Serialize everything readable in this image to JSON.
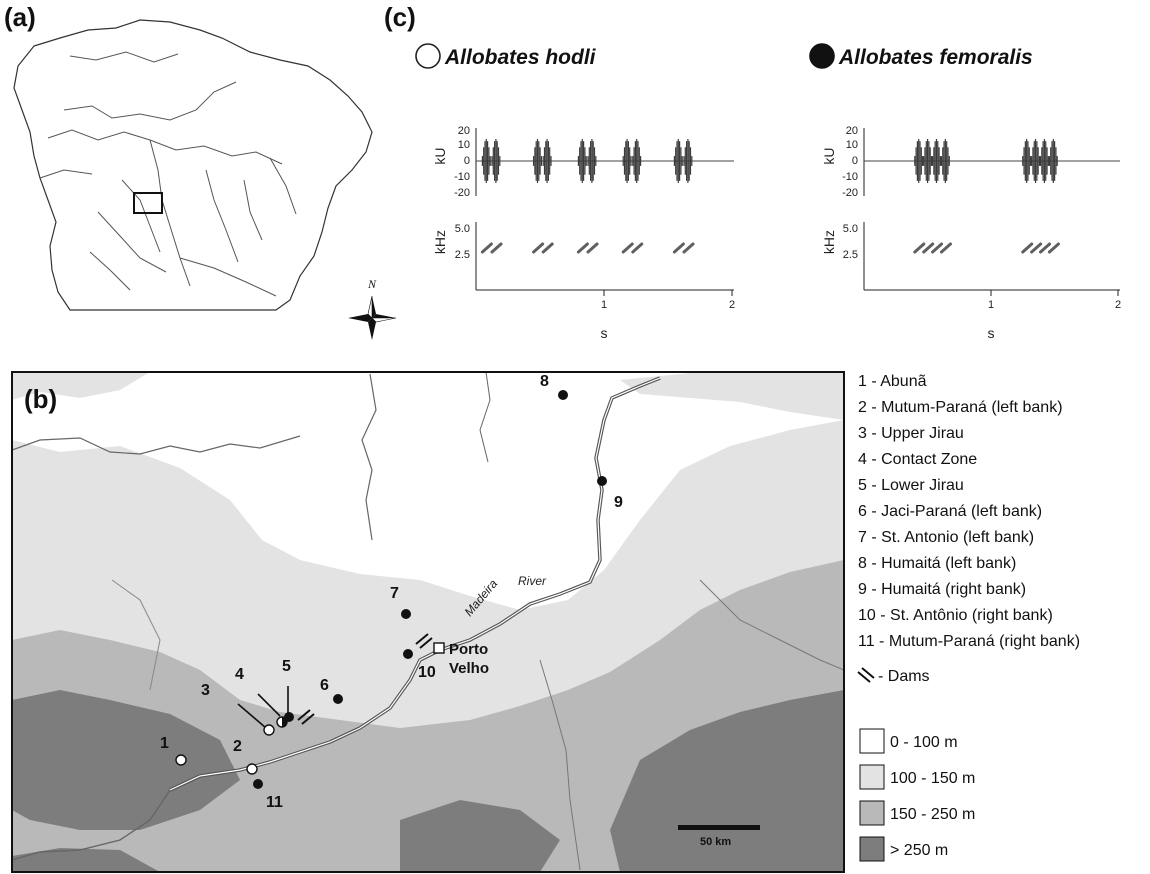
{
  "panels": {
    "a": "(a)",
    "b": "(b)",
    "c": "(c)"
  },
  "overview_map": {
    "north_label": "N"
  },
  "calls": {
    "hodli": {
      "species": "Allobates hodli",
      "symbol": "open-circle",
      "waveform_ylabel": "kU",
      "waveform_ticks": [
        "20",
        "10",
        "0",
        "-10",
        "-20"
      ],
      "spectrogram_ylabel": "kHz",
      "spectrogram_ticks": [
        "5.0",
        "2.5"
      ],
      "x_ticks": [
        "1",
        "2"
      ],
      "x_label": "s",
      "pulse_groups_start_s": [
        0.05,
        0.45,
        0.8,
        1.15,
        1.55
      ],
      "notes_per_group": 2
    },
    "femoralis": {
      "species": "Allobates femoralis",
      "symbol": "filled-circle",
      "waveform_ylabel": "kU",
      "waveform_ticks": [
        "20",
        "10",
        "0",
        "-10",
        "-20"
      ],
      "spectrogram_ylabel": "kHz",
      "spectrogram_ticks": [
        "5.0",
        "2.5"
      ],
      "x_ticks": [
        "1",
        "2"
      ],
      "x_label": "s",
      "pulse_groups_start_s": [
        0.4,
        1.25
      ],
      "notes_per_group": 4
    }
  },
  "main_map": {
    "river_name_1": "Madeira",
    "river_name_2": "River",
    "city_line_1": "Porto",
    "city_line_2": "Velho",
    "scale_bar": "50 km",
    "sites": [
      {
        "num": "1",
        "symbol": "open"
      },
      {
        "num": "2",
        "symbol": "open"
      },
      {
        "num": "3",
        "symbol": "open"
      },
      {
        "num": "4",
        "symbol": "half"
      },
      {
        "num": "5",
        "symbol": "filled"
      },
      {
        "num": "6",
        "symbol": "filled"
      },
      {
        "num": "7",
        "symbol": "filled"
      },
      {
        "num": "8",
        "symbol": "filled"
      },
      {
        "num": "9",
        "symbol": "filled"
      },
      {
        "num": "10",
        "symbol": "filled"
      },
      {
        "num": "11",
        "symbol": "filled"
      }
    ]
  },
  "legend": {
    "sites": [
      "1 - Abunã",
      "2 - Mutum-Paraná (left bank)",
      "3 - Upper Jirau",
      "4 - Contact Zone",
      "5 - Lower Jirau",
      "6 - Jaci-Paraná (left bank)",
      "7 - St. Antonio (left bank)",
      "8 - Humaitá (left bank)",
      "9 - Humaitá (right bank)",
      "10 - St. Antônio (right bank)",
      "11 - Mutum-Paraná (right bank)"
    ],
    "dams": "- Dams",
    "elevation": [
      {
        "label": "0 - 100 m",
        "color": "#ffffff"
      },
      {
        "label": "100 - 150 m",
        "color": "#e3e3e3"
      },
      {
        "label": "150 - 250 m",
        "color": "#b9b9b9"
      },
      {
        "label": "> 250 m",
        "color": "#7d7d7d"
      }
    ]
  }
}
